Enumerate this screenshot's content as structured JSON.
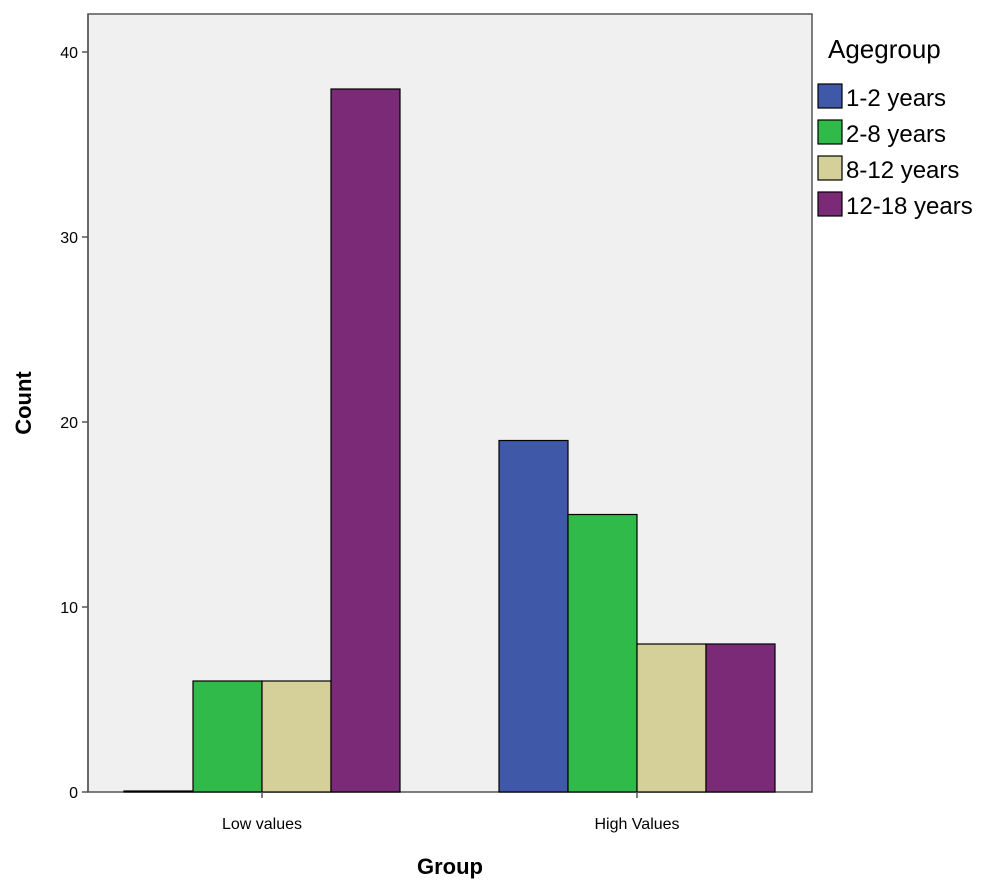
{
  "chart_data": {
    "type": "bar",
    "title": "",
    "xlabel": "Group",
    "ylabel": "Count",
    "categories": [
      "Low values",
      "High Values"
    ],
    "ylim": [
      0,
      40
    ],
    "yticks": [
      0,
      10,
      20,
      30,
      40
    ],
    "grid": false,
    "legend_title": "Agegroup",
    "legend_position": "top-right outside",
    "series": [
      {
        "name": "1-2 years",
        "color": "#3f58a8",
        "values": [
          0,
          19
        ]
      },
      {
        "name": "2-8 years",
        "color": "#2fba4a",
        "values": [
          6,
          15
        ]
      },
      {
        "name": "8-12 years",
        "color": "#d5cf9a",
        "values": [
          6,
          8
        ]
      },
      {
        "name": "12-18 years",
        "color": "#7b2a78",
        "values": [
          38,
          8
        ]
      }
    ],
    "plot_background": "#f0f0f0"
  }
}
